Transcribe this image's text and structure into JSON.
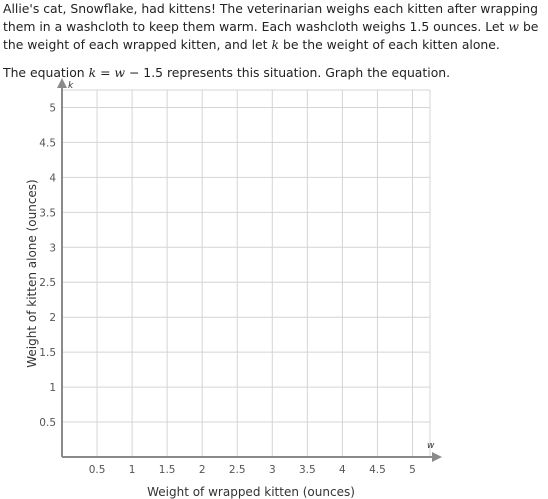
{
  "problem": {
    "story": "Allie's cat, Snowflake, had kittens! The veterinarian weighs each kitten after wrapping them in a washcloth to keep them warm. Each washcloth weighs 1.5 ounces. Let",
    "story_w_var": "w",
    "story_mid": "be the weight of each wrapped kitten, and let",
    "story_k_var": "k",
    "story_end": "be the weight of each kitten alone.",
    "instruction_start": "The equation",
    "eq_lhs": "k",
    "eq_eq": "=",
    "eq_var": "w",
    "eq_rest": "− 1.5 represents this situation. Graph the equation.",
    "instruction_end": ""
  },
  "graph": {
    "x_var": "w",
    "y_var": "k",
    "x_axis_label": "Weight of wrapped kitten (ounces)",
    "y_axis_label": "Weight of kitten alone (ounces)",
    "x_min": 0,
    "x_max": 5.25,
    "y_min": 0,
    "y_max": 5.25,
    "x_ticks": [
      "0.5",
      "1",
      "1.5",
      "2",
      "2.5",
      "3",
      "3.5",
      "4",
      "4.5",
      "5"
    ],
    "y_ticks": [
      "0.5",
      "1",
      "1.5",
      "2",
      "2.5",
      "3",
      "3.5",
      "4",
      "4.5",
      "5"
    ],
    "colors": {
      "grid": "#d4d4d4",
      "axis": "#8a8a8a",
      "tick_text": "#555555",
      "label_text": "#333333"
    }
  }
}
